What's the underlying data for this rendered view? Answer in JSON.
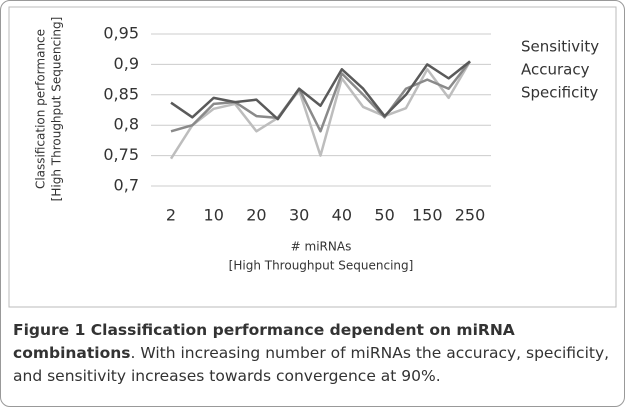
{
  "chart_data": {
    "type": "line",
    "ylabel": [
      "Classification performance",
      "[High Throughput Sequencing]"
    ],
    "xlabel": [
      "# miRNAs",
      "[High Throughput Sequencing]"
    ],
    "categories": [
      "2",
      null,
      "10",
      null,
      "20",
      null,
      "30",
      null,
      "40",
      null,
      "50",
      null,
      "150",
      null,
      "250"
    ],
    "series": [
      {
        "name": "Sensitivity",
        "color": "#5a5a5a",
        "values": [
          0.837,
          0.813,
          0.845,
          0.838,
          0.842,
          0.81,
          0.86,
          0.832,
          0.892,
          0.86,
          0.815,
          0.85,
          0.9,
          0.877,
          0.905
        ]
      },
      {
        "name": "Accuracy",
        "color": "#8a8a8a",
        "values": [
          0.79,
          0.8,
          0.835,
          0.838,
          0.815,
          0.812,
          0.86,
          0.79,
          0.885,
          0.85,
          0.813,
          0.86,
          0.875,
          0.86,
          0.905
        ]
      },
      {
        "name": "Specificity",
        "color": "#bdbdbd",
        "values": [
          0.745,
          0.8,
          0.827,
          0.835,
          0.79,
          0.812,
          0.857,
          0.75,
          0.877,
          0.83,
          0.815,
          0.828,
          0.892,
          0.845,
          0.905
        ]
      }
    ],
    "ylim": [
      0.7,
      0.95
    ],
    "yticks": [
      {
        "value": 0.7,
        "label": "0,7"
      },
      {
        "value": 0.75,
        "label": "0,75"
      },
      {
        "value": 0.8,
        "label": "0,8"
      },
      {
        "value": 0.85,
        "label": "0,85"
      },
      {
        "value": 0.9,
        "label": "0,9"
      },
      {
        "value": 0.95,
        "label": "0,95"
      }
    ],
    "grid": true
  },
  "caption": {
    "bold": "Figure 1 Classification performance dependent on miRNA combinations",
    "text": ". With increasing number of miRNAs the accuracy, specificity, and sensitivity increases towards convergence at 90%."
  }
}
